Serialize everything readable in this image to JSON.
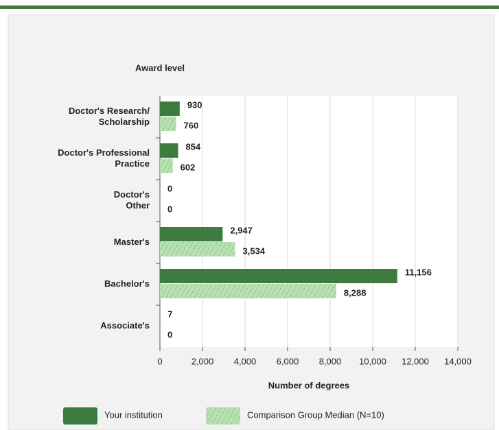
{
  "chart_data": {
    "type": "hbar",
    "ylabel": "Award level",
    "xlabel": "Number of degrees",
    "categories": [
      [
        "Doctor's Research/",
        "Scholarship"
      ],
      [
        "Doctor's Professional",
        "Practice"
      ],
      [
        "Doctor's",
        "Other"
      ],
      [
        "Master's"
      ],
      [
        "Bachelor's"
      ],
      [
        "Associate's"
      ]
    ],
    "series": [
      {
        "name": "Your institution",
        "color": "#3e7b3e",
        "values": [
          930,
          854,
          0,
          2947,
          11156,
          7
        ],
        "value_labels": [
          "930",
          "854",
          "0",
          "2,947",
          "11,156",
          "7"
        ]
      },
      {
        "name": "Comparison Group Median (N=10)",
        "color": "#b9e0b2",
        "pattern": "hatch",
        "values": [
          760,
          602,
          0,
          3534,
          8288,
          0
        ],
        "value_labels": [
          "760",
          "602",
          "0",
          "3,534",
          "8,288",
          "0"
        ]
      }
    ],
    "xlim": [
      0,
      14000
    ],
    "xticks": [
      0,
      {
        "value": 2000,
        "label": "2,000"
      },
      {
        "value": 4000,
        "label": "4,000"
      },
      {
        "value": 6000,
        "label": "6,000"
      },
      {
        "value": 8000,
        "label": "8,000"
      },
      {
        "value": 10000,
        "label": "10,000"
      },
      {
        "value": 12000,
        "label": "12,000"
      },
      {
        "value": 14000,
        "label": "14,000"
      }
    ],
    "grid": true
  }
}
